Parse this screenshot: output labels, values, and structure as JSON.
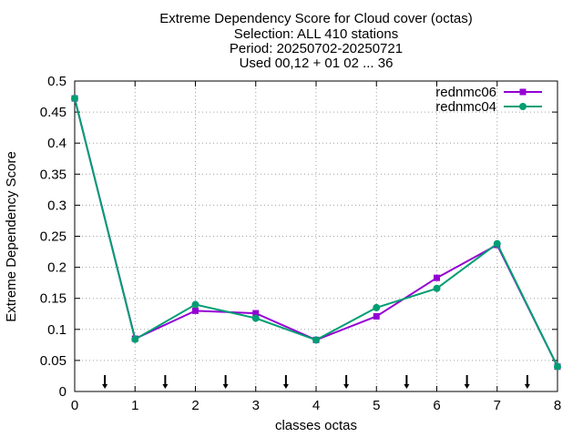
{
  "chart_data": {
    "type": "line",
    "title_lines": [
      "Extreme Dependency Score  for Cloud cover (octas)",
      "Selection: ALL    410 stations",
      "Period: 20250702-20250721",
      "Used 00,12 + 01 02 ... 36"
    ],
    "xlabel": "classes octas",
    "ylabel": "Extreme Dependency Score",
    "xlim": [
      0,
      8
    ],
    "ylim": [
      0,
      0.5
    ],
    "x_ticks": [
      "0",
      "1",
      "2",
      "3",
      "4",
      "5",
      "6",
      "7",
      "8"
    ],
    "y_ticks": [
      "0",
      "0.05",
      "0.1",
      "0.15",
      "0.2",
      "0.25",
      "0.3",
      "0.35",
      "0.4",
      "0.45",
      "0.5"
    ],
    "grid": true,
    "legend_position": "top-right",
    "x": [
      0,
      1,
      2,
      3,
      4,
      5,
      6,
      7,
      8
    ],
    "series": [
      {
        "name": "rednmc06",
        "color": "#9400d3",
        "marker": "square",
        "values": [
          0.472,
          0.085,
          0.13,
          0.126,
          0.083,
          0.121,
          0.183,
          0.236,
          0.04
        ]
      },
      {
        "name": "rednmc04",
        "color": "#009e73",
        "marker": "circle",
        "values": [
          0.472,
          0.084,
          0.14,
          0.118,
          0.083,
          0.135,
          0.166,
          0.238,
          0.04
        ]
      }
    ],
    "class_markers_x": [
      0.5,
      1.5,
      2.5,
      3.5,
      4.5,
      5.5,
      6.5,
      7.5
    ]
  }
}
